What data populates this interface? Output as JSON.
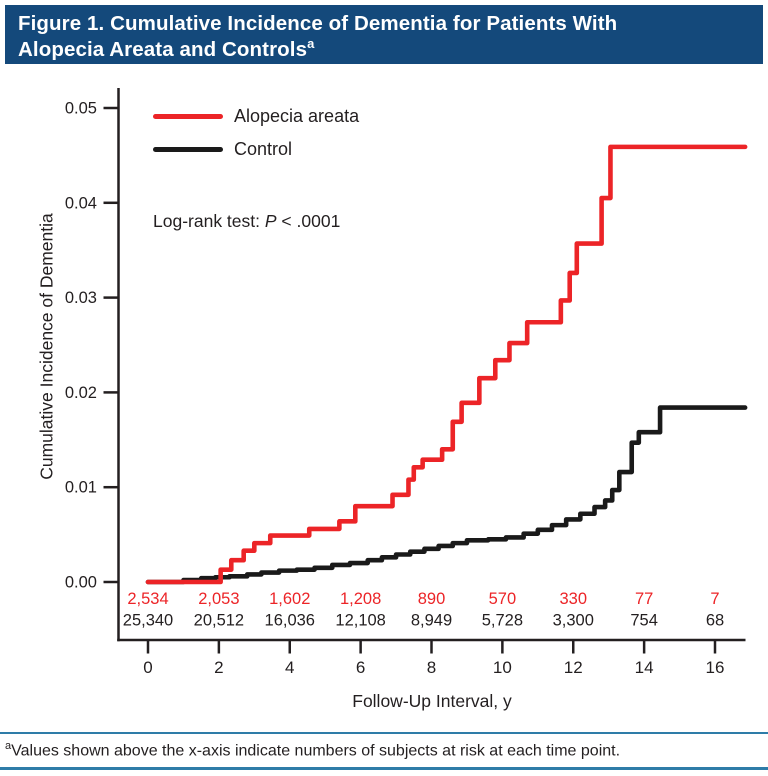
{
  "header": {
    "line1": "Figure 1. Cumulative Incidence of Dementia for Patients With",
    "line2": "Alopecia Areata and Controls",
    "superscript": "a"
  },
  "legend": [
    {
      "label": "Alopecia areata",
      "color": "#ec2427"
    },
    {
      "label": "Control",
      "color": "#1a1a1a"
    }
  ],
  "stats": {
    "prefix": "Log-rank test: ",
    "p_symbol": "P",
    "rest": " < .0001"
  },
  "footnote": {
    "superscript": "a",
    "text": "Values shown above the x-axis indicate numbers of subjects at risk at each time point."
  },
  "colors": {
    "title_bar": "#14497b",
    "alopecia_red": "#ec2427",
    "control_black": "#1a1a1a",
    "text": "#231f20",
    "rule_blue": "#2e7ca8"
  },
  "chart_data": {
    "type": "line",
    "subtype": "step-post cumulative incidence (Kaplan-Meier)",
    "title": "Cumulative Incidence of Dementia for Patients With Alopecia Areata and Controls",
    "xlabel": "Follow-Up Interval, y",
    "ylabel": "Cumulative Incidence of Dementia",
    "xlim": [
      0,
      16.85
    ],
    "ylim": [
      0,
      0.05
    ],
    "xticks": [
      "0",
      "2",
      "4",
      "6",
      "8",
      "10",
      "12",
      "14",
      "16"
    ],
    "yticks": [
      "0.00",
      "0.01",
      "0.02",
      "0.03",
      "0.04",
      "0.05"
    ],
    "grid": false,
    "legend_position": "top-left-inside",
    "annotation": "Log-rank test: P < .0001",
    "series": [
      {
        "name": "Control",
        "color": "#1a1a1a",
        "points": [
          [
            0,
            0
          ],
          [
            1.0,
            0.0002
          ],
          [
            1.5,
            0.0004
          ],
          [
            1.9,
            0.0005
          ],
          [
            2.3,
            0.0006
          ],
          [
            2.8,
            0.0008
          ],
          [
            3.2,
            0.001
          ],
          [
            3.7,
            0.0012
          ],
          [
            4.2,
            0.0013
          ],
          [
            4.7,
            0.0015
          ],
          [
            5.2,
            0.0018
          ],
          [
            5.7,
            0.002
          ],
          [
            6.2,
            0.0023
          ],
          [
            6.6,
            0.0026
          ],
          [
            7.0,
            0.0029
          ],
          [
            7.4,
            0.0032
          ],
          [
            7.8,
            0.0035
          ],
          [
            8.2,
            0.0038
          ],
          [
            8.6,
            0.0041
          ],
          [
            9.0,
            0.0044
          ],
          [
            9.6,
            0.0045
          ],
          [
            10.1,
            0.0047
          ],
          [
            10.6,
            0.0051
          ],
          [
            11.0,
            0.0055
          ],
          [
            11.4,
            0.006
          ],
          [
            11.8,
            0.0066
          ],
          [
            12.2,
            0.0072
          ],
          [
            12.6,
            0.0079
          ],
          [
            12.9,
            0.0086
          ],
          [
            13.1,
            0.0097
          ],
          [
            13.3,
            0.0116
          ],
          [
            13.65,
            0.0147
          ],
          [
            13.85,
            0.0158
          ],
          [
            14.45,
            0.0184
          ],
          [
            16.85,
            0.0184
          ]
        ]
      },
      {
        "name": "Alopecia areata",
        "color": "#ec2427",
        "points": [
          [
            0,
            0
          ],
          [
            2.05,
            0.0013
          ],
          [
            2.35,
            0.0023
          ],
          [
            2.7,
            0.0033
          ],
          [
            3.0,
            0.0041
          ],
          [
            3.45,
            0.0049
          ],
          [
            4.55,
            0.0056
          ],
          [
            5.4,
            0.0064
          ],
          [
            5.85,
            0.008
          ],
          [
            6.9,
            0.0092
          ],
          [
            7.35,
            0.0108
          ],
          [
            7.5,
            0.0121
          ],
          [
            7.75,
            0.0129
          ],
          [
            8.3,
            0.014
          ],
          [
            8.6,
            0.0169
          ],
          [
            8.85,
            0.0189
          ],
          [
            9.35,
            0.0215
          ],
          [
            9.8,
            0.0234
          ],
          [
            10.2,
            0.0252
          ],
          [
            10.7,
            0.0274
          ],
          [
            11.65,
            0.0297
          ],
          [
            11.9,
            0.0326
          ],
          [
            12.1,
            0.0357
          ],
          [
            12.8,
            0.0405
          ],
          [
            13.05,
            0.0459
          ],
          [
            16.85,
            0.0459
          ]
        ]
      }
    ],
    "at_risk": {
      "times": [
        0,
        2,
        4,
        6,
        8,
        10,
        12,
        14,
        16
      ],
      "rows": [
        {
          "name": "Alopecia areata",
          "color": "#ec2427",
          "values": [
            "2,534",
            "2,053",
            "1,602",
            "1,208",
            "890",
            "570",
            "330",
            "77",
            "7"
          ]
        },
        {
          "name": "Control",
          "color": "#231f20",
          "values": [
            "25,340",
            "20,512",
            "16,036",
            "12,108",
            "8,949",
            "5,728",
            "3,300",
            "754",
            "68"
          ]
        }
      ]
    }
  }
}
